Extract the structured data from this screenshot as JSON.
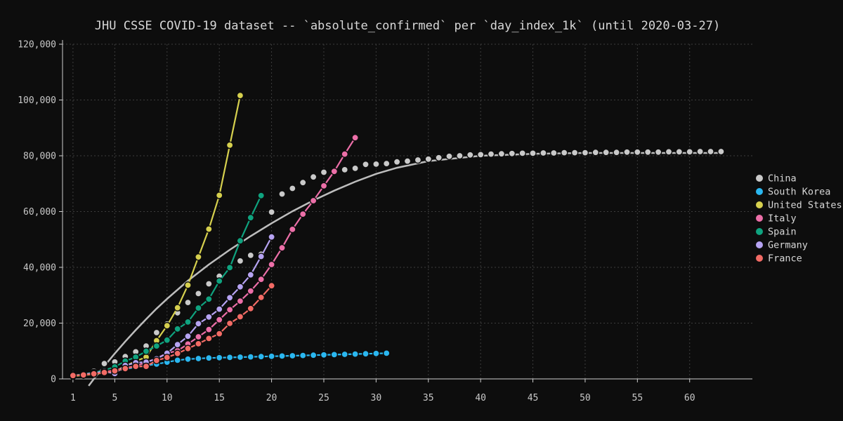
{
  "chart_data": {
    "type": "line",
    "title": "JHU CSSE COVID-19 dataset -- `absolute_confirmed` per `day_index_1k` (until 2020-03-27)",
    "xlabel": "",
    "ylabel": "",
    "xlim": [
      0,
      66
    ],
    "ylim": [
      0,
      120000
    ],
    "x_ticks": [
      1,
      5,
      10,
      15,
      20,
      25,
      30,
      35,
      40,
      45,
      50,
      55,
      60
    ],
    "y_ticks": [
      0,
      20000,
      40000,
      60000,
      80000,
      100000,
      120000
    ],
    "y_tick_labels": [
      "0",
      "20,000",
      "40,000",
      "60,000",
      "80,000",
      "100,000",
      "120,000"
    ],
    "grid": true,
    "legend_position": "right",
    "series": [
      {
        "name": "China",
        "color": "#c9c9c9",
        "style": "markers",
        "x": [
          1,
          2,
          3,
          4,
          5,
          6,
          7,
          8,
          9,
          10,
          11,
          12,
          13,
          14,
          15,
          16,
          17,
          18,
          19,
          20,
          21,
          22,
          23,
          24,
          25,
          26,
          27,
          28,
          29,
          30,
          31,
          32,
          33,
          34,
          35,
          36,
          37,
          38,
          39,
          40,
          41,
          42,
          43,
          44,
          45,
          46,
          47,
          48,
          49,
          50,
          51,
          52,
          53,
          54,
          55,
          56,
          57,
          58,
          59,
          60,
          61,
          62,
          63
        ],
        "y": [
          1300,
          2000,
          2800,
          5500,
          6100,
          8000,
          9700,
          11800,
          16600,
          19700,
          23700,
          27400,
          30600,
          34100,
          36800,
          39800,
          42300,
          44300,
          44700,
          59800,
          66300,
          68300,
          70400,
          72400,
          74100,
          74500,
          75000,
          75500,
          76900,
          77000,
          77200,
          77800,
          78100,
          78500,
          78800,
          79300,
          79800,
          80000,
          80300,
          80400,
          80600,
          80700,
          80800,
          80900,
          80900,
          81000,
          81000,
          81100,
          81100,
          81100,
          81200,
          81200,
          81200,
          81300,
          81300,
          81300,
          81300,
          81400,
          81400,
          81400,
          81500,
          81500,
          81500
        ]
      },
      {
        "name": "South Korea",
        "color": "#2ab7f0",
        "style": "line-markers",
        "x": [
          1,
          2,
          3,
          4,
          5,
          6,
          7,
          8,
          9,
          10,
          11,
          12,
          13,
          14,
          15,
          16,
          17,
          18,
          19,
          20,
          21,
          22,
          23,
          24,
          25,
          26,
          27,
          28,
          29,
          30,
          31
        ],
        "y": [
          1150,
          1600,
          2000,
          2300,
          2900,
          3500,
          4200,
          4800,
          5300,
          6000,
          6700,
          7100,
          7300,
          7500,
          7600,
          7700,
          7800,
          7900,
          8000,
          8100,
          8200,
          8300,
          8400,
          8500,
          8600,
          8700,
          8800,
          8900,
          9000,
          9100,
          9200
        ]
      },
      {
        "name": "United States",
        "color": "#d6d04e",
        "style": "line-markers",
        "x": [
          1,
          2,
          3,
          4,
          5,
          6,
          7,
          8,
          9,
          10,
          11,
          12,
          13,
          14,
          15,
          16,
          17
        ],
        "y": [
          1000,
          1300,
          1700,
          2200,
          2700,
          4600,
          6400,
          7800,
          13700,
          19100,
          25500,
          33600,
          43700,
          53700,
          65800,
          83800,
          101600
        ]
      },
      {
        "name": "Italy",
        "color": "#ec6fa8",
        "style": "line-markers",
        "x": [
          1,
          2,
          3,
          4,
          5,
          6,
          7,
          8,
          9,
          10,
          11,
          12,
          13,
          14,
          15,
          16,
          17,
          18,
          19,
          20,
          21,
          22,
          23,
          24,
          25,
          26,
          27,
          28
        ],
        "y": [
          1100,
          1700,
          2000,
          2500,
          3100,
          3900,
          4600,
          5900,
          7400,
          9200,
          10100,
          12500,
          15100,
          17700,
          21200,
          24800,
          27900,
          31500,
          35700,
          41000,
          47000,
          53600,
          59100,
          63900,
          69200,
          74400,
          80600,
          86500
        ]
      },
      {
        "name": "Spain",
        "color": "#0fa37f",
        "style": "line-markers",
        "x": [
          1,
          2,
          3,
          4,
          5,
          6,
          7,
          8,
          9,
          10,
          11,
          12,
          13,
          14,
          15,
          16,
          17,
          18,
          19
        ],
        "y": [
          1200,
          1700,
          2300,
          3100,
          4300,
          6400,
          7800,
          9900,
          11800,
          13900,
          17900,
          20400,
          25400,
          28600,
          35100,
          39900,
          49500,
          57800,
          65700
        ]
      },
      {
        "name": "Germany",
        "color": "#b6a3f2",
        "style": "line-markers",
        "x": [
          1,
          2,
          3,
          4,
          5,
          6,
          7,
          8,
          9,
          10,
          11,
          12,
          13,
          14,
          15,
          16,
          17,
          18,
          19,
          20
        ],
        "y": [
          1100,
          1600,
          2100,
          2700,
          1900,
          4800,
          5800,
          6000,
          7200,
          9200,
          12300,
          15300,
          19800,
          22200,
          25000,
          29100,
          33000,
          37300,
          43900,
          50900
        ]
      },
      {
        "name": "France",
        "color": "#f26b65",
        "style": "line-markers",
        "x": [
          1,
          2,
          3,
          4,
          5,
          6,
          7,
          8,
          9,
          10,
          11,
          12,
          13,
          14,
          15,
          16,
          17,
          18,
          19,
          20
        ],
        "y": [
          1200,
          1400,
          1800,
          2300,
          2900,
          3700,
          4500,
          4500,
          6600,
          7700,
          9100,
          10900,
          12600,
          14500,
          16200,
          19900,
          22300,
          25200,
          29200,
          33400
        ]
      }
    ],
    "fit_curve": {
      "color": "#bdbdbd",
      "x": [
        2.5,
        3,
        4,
        5,
        6,
        7,
        8,
        9,
        10,
        12,
        14,
        16,
        18,
        20,
        22,
        24,
        26,
        28,
        30,
        32,
        35,
        40,
        45,
        50,
        55,
        60,
        63
      ],
      "y": [
        -2500,
        0,
        4600,
        9100,
        13400,
        17500,
        21400,
        25200,
        28700,
        35200,
        41000,
        46300,
        51200,
        55800,
        60100,
        64000,
        67500,
        70700,
        73500,
        75700,
        78100,
        80000,
        80700,
        81000,
        81000,
        81000,
        81000
      ]
    }
  }
}
